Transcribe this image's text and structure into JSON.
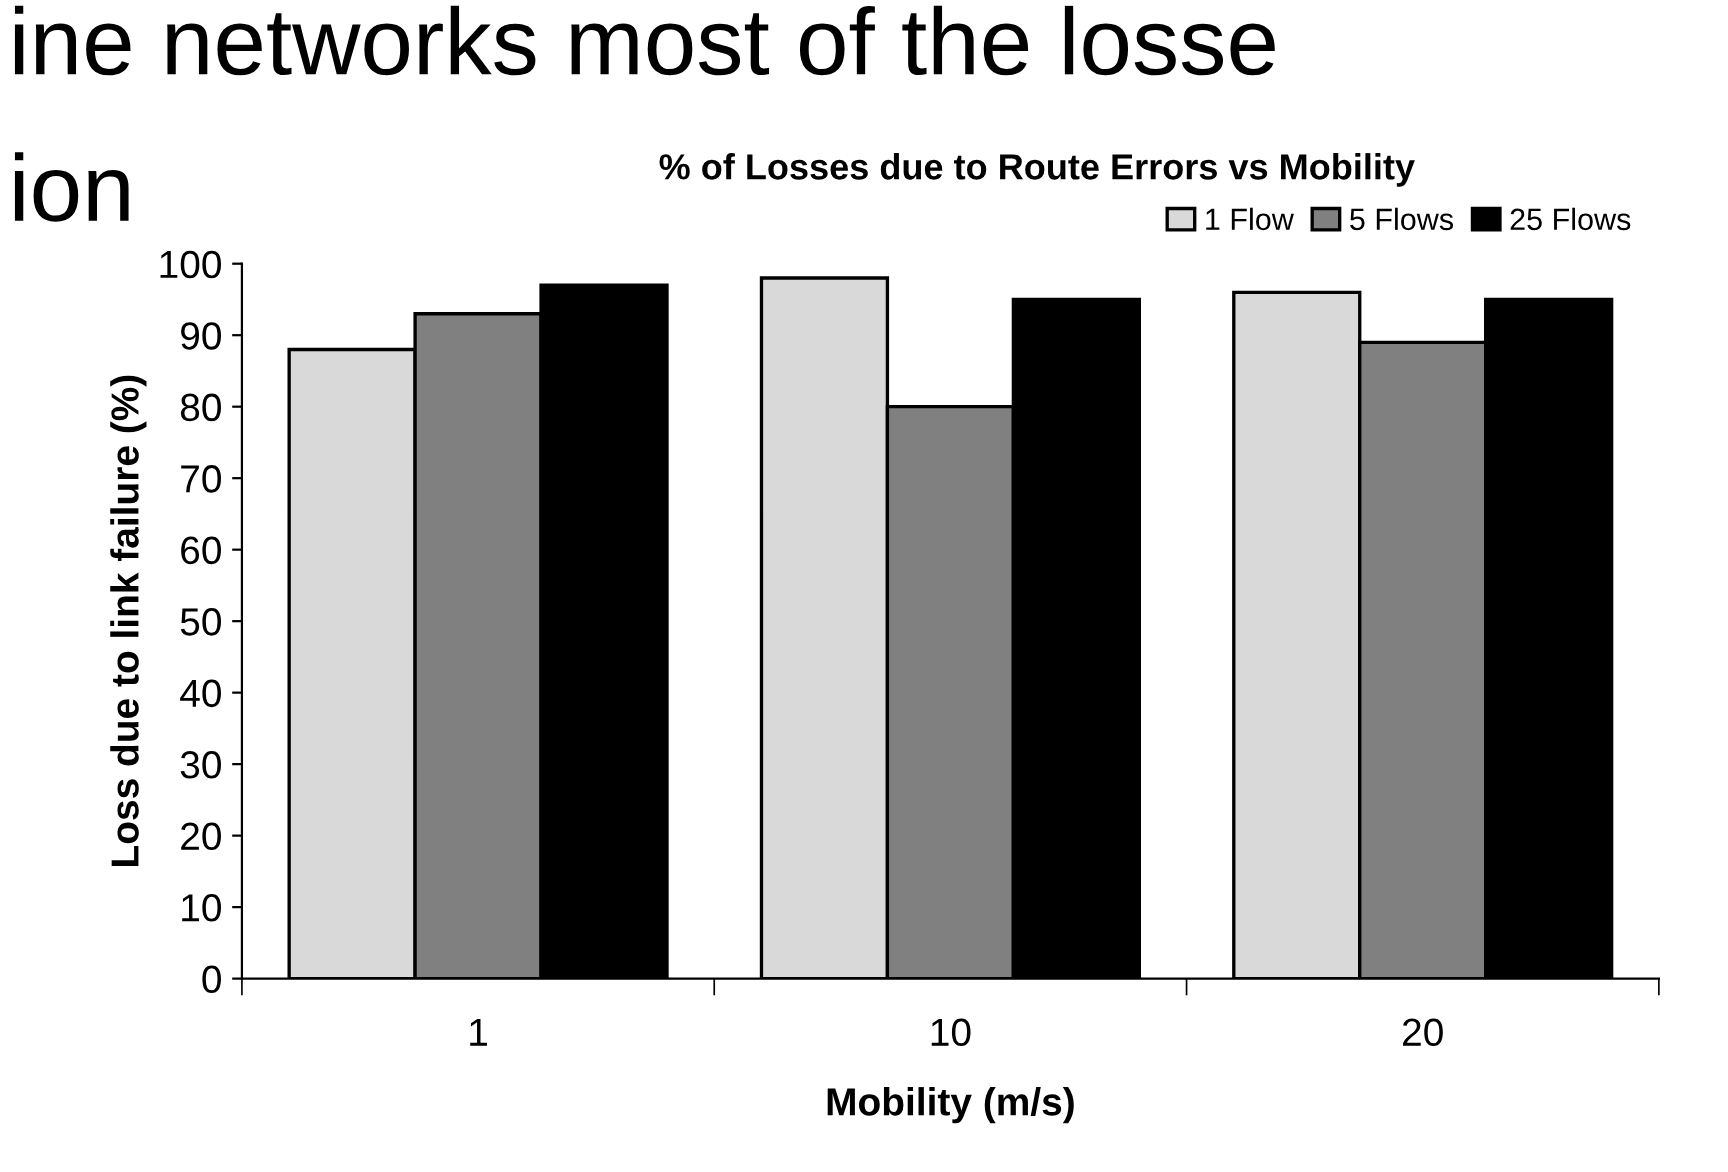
{
  "chart_data": {
    "type": "bar",
    "title": "% of Losses due to Route Errors vs Mobility",
    "xlabel": "Mobility (m/s)",
    "ylabel": "Loss due to link failure (%)",
    "annotations": [
      "ine networks most of the losse",
      "ion"
    ],
    "categories": [
      "1",
      "10",
      "20"
    ],
    "series": [
      {
        "name": "1 Flow",
        "color": "#d9d9d9",
        "values": [
          88,
          98,
          96
        ]
      },
      {
        "name": "5 Flows",
        "color": "#808080",
        "values": [
          93,
          80,
          89
        ]
      },
      {
        "name": "25 Flows",
        "color": "#000000",
        "values": [
          97,
          95,
          95
        ]
      }
    ],
    "ylim": [
      0,
      100
    ],
    "yticks": [
      0,
      10,
      20,
      30,
      40,
      50,
      60,
      70,
      80,
      90,
      100
    ],
    "grid": false,
    "legend": "top right"
  }
}
